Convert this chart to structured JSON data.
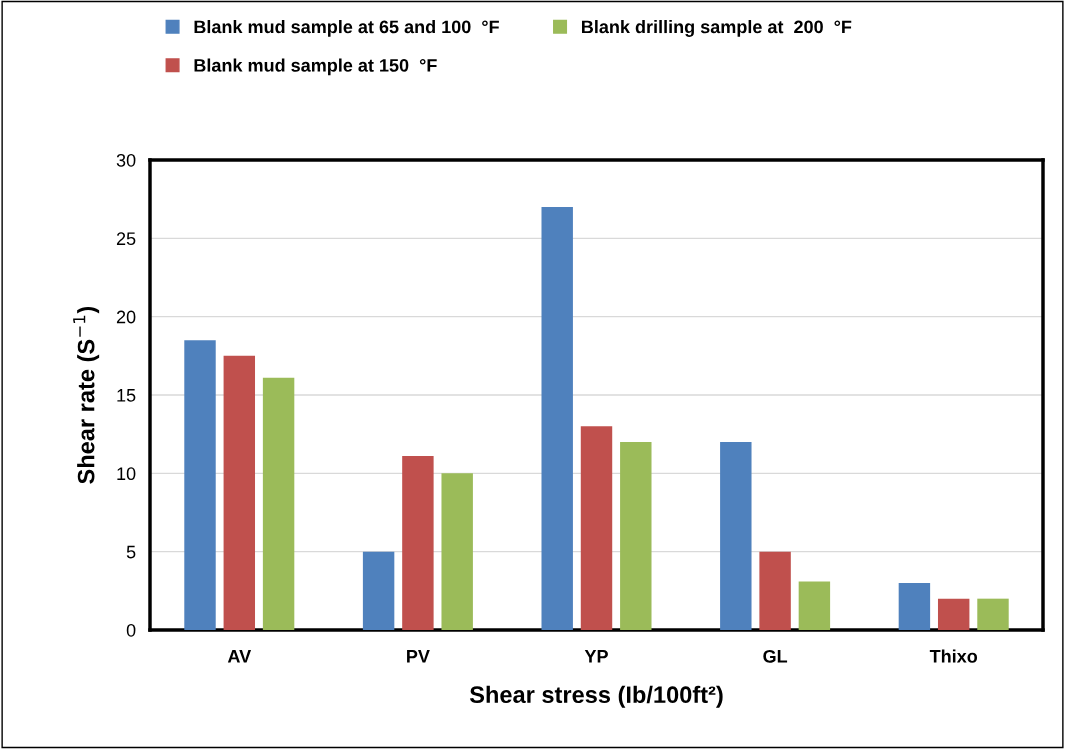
{
  "chart_data": {
    "type": "bar",
    "xlabel": "Shear stress (Ib/100ft²)",
    "ylabel": "Shear rate (S$^{−1}$)",
    "categories": [
      "AV",
      "PV",
      "YP",
      "GL",
      "Thixo"
    ],
    "series": [
      {
        "name": "Blank mud sample at 65 and 100  °F",
        "color": "#4f81bd",
        "values": [
          18.5,
          5,
          27,
          12,
          3
        ]
      },
      {
        "name": "Blank mud sample at 150  °F",
        "color": "#c0504d",
        "values": [
          17.5,
          11.1,
          13,
          5,
          2
        ]
      },
      {
        "name": "Blank drilling sample at  200  °F",
        "color": "#9bbb59",
        "values": [
          16.1,
          10,
          12,
          3.1,
          2
        ]
      }
    ],
    "ylim": [
      0,
      30
    ],
    "yticks": [
      0,
      5,
      10,
      15,
      20,
      25,
      30
    ],
    "grid": "y",
    "legend": "top"
  }
}
